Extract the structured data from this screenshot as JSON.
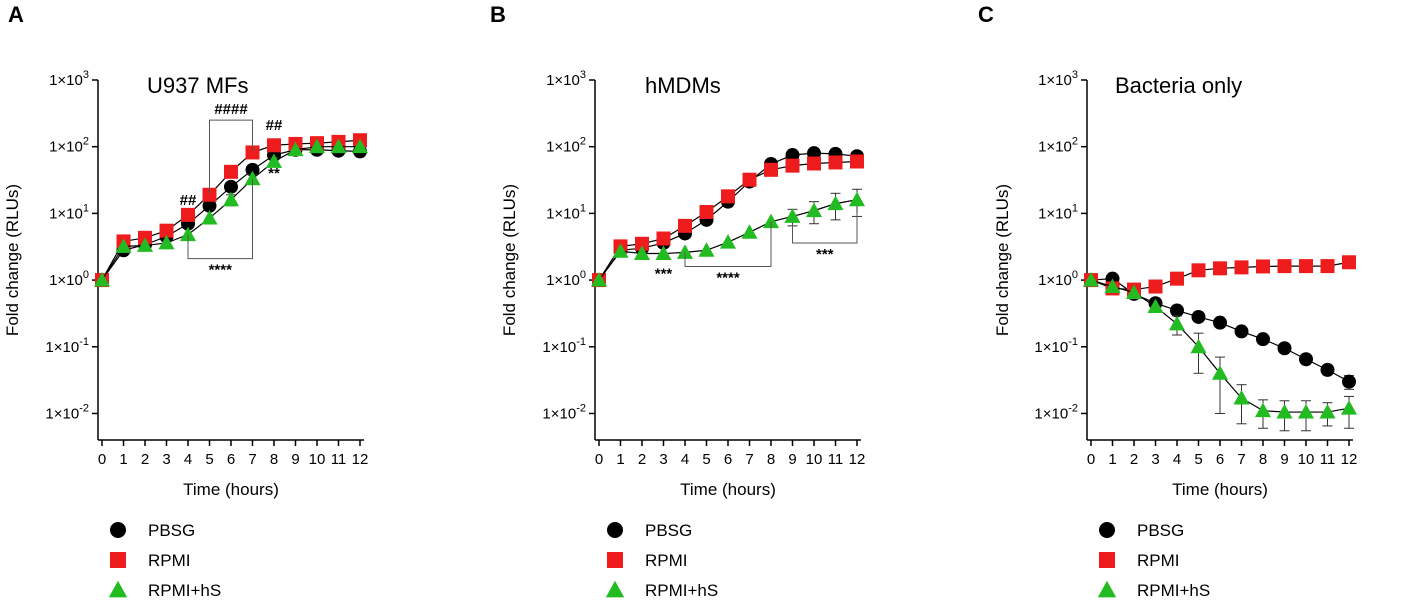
{
  "chart_data": [
    {
      "type": "line",
      "panel_letter": "A",
      "title": "U937 MFs",
      "xlabel": "Time (hours)",
      "ylabel": "Fold change (RLUs)",
      "x": [
        0,
        1,
        2,
        3,
        4,
        5,
        6,
        7,
        8,
        9,
        10,
        11,
        12
      ],
      "x_tick_labels": [
        "0",
        "1",
        "2",
        "3",
        "4",
        "5",
        "6",
        "7",
        "8",
        "9",
        "10",
        "11",
        "12"
      ],
      "yscale": "log",
      "ylim": [
        0.004,
        1000
      ],
      "y_ticks": [
        {
          "base": "1×10",
          "exp": "3",
          "value": 1000
        },
        {
          "base": "1×10",
          "exp": "2",
          "value": 100
        },
        {
          "base": "1×10",
          "exp": "1",
          "value": 10
        },
        {
          "base": "1×10",
          "exp": "0",
          "value": 1
        },
        {
          "base": "1×10",
          "exp": "-1",
          "value": 0.1
        },
        {
          "base": "1×10",
          "exp": "-2",
          "value": 0.01
        }
      ],
      "series": [
        {
          "name": "PBSG",
          "marker": "circle",
          "color": "#000000",
          "values": [
            1,
            2.8,
            3.4,
            4.5,
            7,
            13,
            25,
            45,
            75,
            90,
            90,
            87,
            85
          ]
        },
        {
          "name": "RPMI",
          "marker": "square",
          "color": "#ee1c1c",
          "values": [
            1,
            3.8,
            4.3,
            5.5,
            9.5,
            19,
            42,
            82,
            105,
            110,
            113,
            118,
            125
          ]
        },
        {
          "name": "RPMI+hS",
          "marker": "triangle",
          "color": "#22bb22",
          "values": [
            1,
            3.2,
            3.3,
            3.6,
            4.8,
            8.5,
            16,
            33,
            60,
            90,
            100,
            100,
            100
          ],
          "error": [
            0,
            0,
            0,
            0,
            0,
            0,
            3,
            5,
            8,
            0,
            0,
            0,
            0
          ]
        }
      ],
      "annotations": [
        {
          "text": "####",
          "type": "bracket-top",
          "x1": 5,
          "x2": 7,
          "y": 250,
          "y_left": 20,
          "y_right": 85
        },
        {
          "text": "##",
          "x": 4,
          "y": 16
        },
        {
          "text": "##",
          "x": 8,
          "y": 210
        },
        {
          "text": "**",
          "x": 8,
          "y": 40
        },
        {
          "text": "****",
          "type": "bracket-bottom",
          "x1": 4,
          "x2": 7,
          "y": 2.1,
          "y_left": 4.8,
          "y_right": 33
        }
      ],
      "legend": {
        "position": "below",
        "items": [
          "PBSG",
          "RPMI",
          "RPMI+hS"
        ]
      }
    },
    {
      "type": "line",
      "panel_letter": "B",
      "title": "hMDMs",
      "xlabel": "Time (hours)",
      "ylabel": "Fold change (RLUs)",
      "x": [
        0,
        1,
        2,
        3,
        4,
        5,
        6,
        7,
        8,
        9,
        10,
        11,
        12
      ],
      "x_tick_labels": [
        "0",
        "1",
        "2",
        "3",
        "4",
        "5",
        "6",
        "7",
        "8",
        "9",
        "10",
        "11",
        "12"
      ],
      "yscale": "log",
      "ylim": [
        0.004,
        1000
      ],
      "y_ticks": [
        {
          "base": "1×10",
          "exp": "3",
          "value": 1000
        },
        {
          "base": "1×10",
          "exp": "2",
          "value": 100
        },
        {
          "base": "1×10",
          "exp": "1",
          "value": 10
        },
        {
          "base": "1×10",
          "exp": "0",
          "value": 1
        },
        {
          "base": "1×10",
          "exp": "-1",
          "value": 0.1
        },
        {
          "base": "1×10",
          "exp": "-2",
          "value": 0.01
        }
      ],
      "series": [
        {
          "name": "PBSG",
          "marker": "circle",
          "color": "#000000",
          "values": [
            1,
            2.8,
            3,
            3.6,
            5,
            8,
            15,
            30,
            55,
            75,
            80,
            78,
            72
          ]
        },
        {
          "name": "RPMI",
          "marker": "square",
          "color": "#ee1c1c",
          "values": [
            1,
            3.2,
            3.5,
            4.2,
            6.5,
            10.5,
            18,
            32,
            45,
            52,
            56,
            58,
            60
          ]
        },
        {
          "name": "RPMI+hS",
          "marker": "triangle",
          "color": "#22bb22",
          "values": [
            1,
            2.7,
            2.5,
            2.5,
            2.6,
            2.8,
            3.7,
            5.2,
            7.5,
            9,
            11,
            14,
            16
          ],
          "error": [
            0,
            0,
            0,
            0,
            0,
            0,
            0,
            0,
            0,
            2.5,
            4,
            6,
            7
          ]
        }
      ],
      "annotations": [
        {
          "text": "***",
          "x": 3,
          "y": 1.25
        },
        {
          "text": "****",
          "type": "bracket-bottom",
          "x1": 4,
          "x2": 8,
          "y": 1.6,
          "y_left": 2.6,
          "y_right": 7.5
        },
        {
          "text": "***",
          "type": "bracket-bottom",
          "x1": 9,
          "x2": 12,
          "y": 3.6,
          "y_left": 7,
          "y_right": 10
        }
      ],
      "legend": {
        "position": "below",
        "items": [
          "PBSG",
          "RPMI",
          "RPMI+hS"
        ]
      }
    },
    {
      "type": "line",
      "panel_letter": "C",
      "title": "Bacteria only",
      "xlabel": "Time (hours)",
      "ylabel": "Fold change (RLUs)",
      "x": [
        0,
        1,
        2,
        3,
        4,
        5,
        6,
        7,
        8,
        9,
        10,
        11,
        12
      ],
      "x_tick_labels": [
        "0",
        "1",
        "2",
        "3",
        "4",
        "5",
        "6",
        "7",
        "8",
        "9",
        "10",
        "11",
        "12"
      ],
      "yscale": "log",
      "ylim": [
        0.004,
        1000
      ],
      "y_ticks": [
        {
          "base": "1×10",
          "exp": "3",
          "value": 1000
        },
        {
          "base": "1×10",
          "exp": "2",
          "value": 100
        },
        {
          "base": "1×10",
          "exp": "1",
          "value": 10
        },
        {
          "base": "1×10",
          "exp": "0",
          "value": 1
        },
        {
          "base": "1×10",
          "exp": "-1",
          "value": 0.1
        },
        {
          "base": "1×10",
          "exp": "-2",
          "value": 0.01
        }
      ],
      "series": [
        {
          "name": "PBSG",
          "marker": "circle",
          "color": "#000000",
          "values": [
            1,
            1.05,
            0.62,
            0.45,
            0.35,
            0.28,
            0.23,
            0.17,
            0.13,
            0.095,
            0.065,
            0.045,
            0.03
          ],
          "error": [
            0,
            0,
            0,
            0,
            0,
            0,
            0,
            0,
            0,
            0,
            0,
            0.007,
            0.007
          ]
        },
        {
          "name": "RPMI",
          "marker": "square",
          "color": "#ee1c1c",
          "values": [
            1,
            0.75,
            0.72,
            0.8,
            1.05,
            1.4,
            1.5,
            1.55,
            1.6,
            1.62,
            1.62,
            1.62,
            1.85
          ]
        },
        {
          "name": "RPMI+hS",
          "marker": "triangle",
          "color": "#22bb22",
          "values": [
            1,
            0.8,
            0.65,
            0.4,
            0.22,
            0.1,
            0.04,
            0.017,
            0.011,
            0.0105,
            0.0105,
            0.0105,
            0.012
          ],
          "error": [
            0,
            0,
            0,
            0,
            0.07,
            0.06,
            0.03,
            0.01,
            0.005,
            0.005,
            0.005,
            0.004,
            0.006
          ]
        }
      ],
      "annotations": [],
      "legend": {
        "position": "below",
        "items": [
          "PBSG",
          "RPMI",
          "RPMI+hS"
        ]
      }
    }
  ]
}
